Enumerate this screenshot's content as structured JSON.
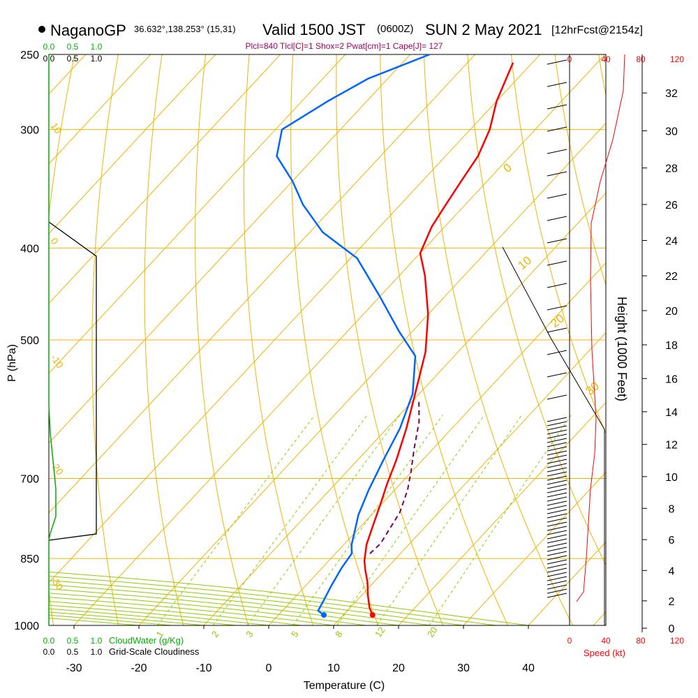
{
  "header": {
    "station": "NaganoGP",
    "coords": "36.632°,138.253° (15,31)",
    "valid": "Valid 1500 JST",
    "utc": "(0600Z)",
    "date": "SUN 2 May 2021",
    "forecast": "[12hrFcst@2154z]",
    "indices": "Plcl=840 Tlcl[C]=1 Shox=2 Pwat[cm]=1 Cape[J]= 127"
  },
  "chart_data": {
    "type": "line",
    "xlabel": "Temperature (C)",
    "ylabel": "P (hPa)",
    "y2label": "Height (1000 Feet)",
    "xlim": [
      -35,
      45
    ],
    "ylim": [
      1000,
      250
    ],
    "x_ticks": [
      -30,
      -20,
      -10,
      0,
      10,
      20,
      30,
      40
    ],
    "pressure_ticks": [
      250,
      300,
      400,
      500,
      700,
      850,
      1000
    ],
    "height_ticks": [
      0,
      2,
      4,
      6,
      8,
      10,
      12,
      14,
      16,
      18,
      20,
      22,
      24,
      26,
      28,
      30,
      32
    ],
    "series": [
      {
        "role": "temperature",
        "color": "#ff0000",
        "points": [
          [
            14.5,
            975
          ],
          [
            13,
            958
          ],
          [
            11,
            930
          ],
          [
            9,
            900
          ],
          [
            7,
            875
          ],
          [
            5.5,
            855
          ],
          [
            3.5,
            822
          ],
          [
            2,
            790
          ],
          [
            0,
            748
          ],
          [
            -2,
            710
          ],
          [
            -4,
            670
          ],
          [
            -7,
            620
          ],
          [
            -11,
            565
          ],
          [
            -15,
            515
          ],
          [
            -20,
            470
          ],
          [
            -26,
            428
          ],
          [
            -30,
            405
          ],
          [
            -32,
            380
          ],
          [
            -33,
            360
          ],
          [
            -34,
            340
          ],
          [
            -35,
            320
          ],
          [
            -37,
            300
          ],
          [
            -40,
            280
          ],
          [
            -43,
            255
          ]
        ]
      },
      {
        "role": "dewpoint",
        "color": "#0066ff",
        "points": [
          [
            7,
            975
          ],
          [
            5.5,
            965
          ],
          [
            5,
            945
          ],
          [
            4,
            910
          ],
          [
            3,
            870
          ],
          [
            2.5,
            840
          ],
          [
            1.2,
            822
          ],
          [
            0,
            800
          ],
          [
            -2,
            765
          ],
          [
            -4,
            720
          ],
          [
            -6,
            670
          ],
          [
            -8,
            620
          ],
          [
            -11,
            570
          ],
          [
            -16,
            520
          ],
          [
            -22,
            490
          ],
          [
            -30,
            450
          ],
          [
            -39,
            410
          ],
          [
            -48,
            385
          ],
          [
            -55,
            360
          ],
          [
            -60,
            340
          ],
          [
            -66,
            320
          ],
          [
            -69,
            300
          ],
          [
            -66,
            280
          ],
          [
            -63,
            265
          ],
          [
            -57,
            250
          ]
        ]
      },
      {
        "role": "parcel",
        "color": "#800050",
        "points": [
          [
            5.3,
            840
          ],
          [
            5.5,
            820
          ],
          [
            4,
            760
          ],
          [
            2,
            720
          ],
          [
            0,
            690
          ],
          [
            -3,
            650
          ],
          [
            -6,
            610
          ],
          [
            -9,
            580
          ]
        ]
      }
    ],
    "surface_temperature": 14.5,
    "surface_dewpoint": 7,
    "mixing_ratio_labels": [
      "1",
      "2",
      "3",
      "5",
      "8",
      "12",
      "20"
    ],
    "isotherm_labels": [
      "10",
      "0",
      "-10",
      "-20",
      "-30"
    ],
    "dry_adiabat_labels": [
      "0",
      "10",
      "20",
      "30"
    ],
    "wind_speed_axis": {
      "label": "Speed (kt)",
      "ticks": [
        "0",
        "40",
        "80",
        "120"
      ]
    },
    "cloud_axis": {
      "cloud_water_label": "CloudWater (g/Kg)",
      "cloudiness_label": "Grid-Scale Cloudiness",
      "cloud_water_ticks": [
        "0.0",
        "0.5",
        "1.0"
      ],
      "cloudiness_ticks": [
        "0.0",
        "0.5",
        "1.0"
      ]
    }
  },
  "colors": {
    "temperature": "#ff0000",
    "dewpoint": "#0066ff",
    "parcel": "#800050",
    "isotherm_grid": "#f0b400",
    "dry_adiabat": "#8ccd00",
    "mixing_ratio": "#8ccd00",
    "cloud_water": "#00b000",
    "wind_speed": "#ff0000"
  }
}
